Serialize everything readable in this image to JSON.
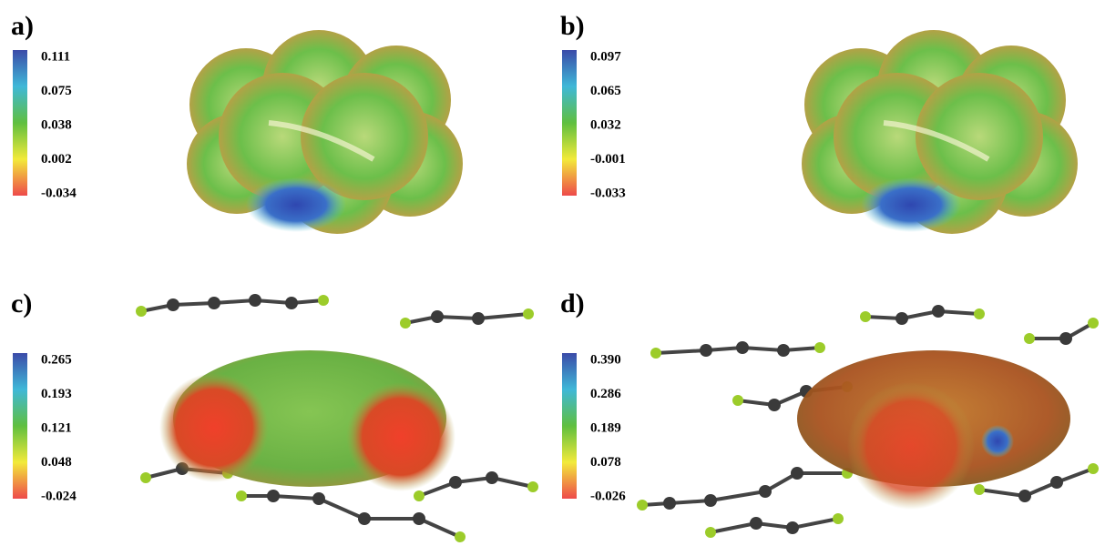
{
  "panels": [
    {
      "label": "a)",
      "ticks": [
        "0.111",
        "0.075",
        "0.038",
        "0.002",
        "-0.034"
      ]
    },
    {
      "label": "b)",
      "ticks": [
        "0.097",
        "0.065",
        "0.032",
        "-0.001",
        "-0.033"
      ]
    },
    {
      "label": "c)",
      "ticks": [
        "0.265",
        "0.193",
        "0.121",
        "0.048",
        "-0.024"
      ]
    },
    {
      "label": "d)",
      "ticks": [
        "0.390",
        "0.286",
        "0.189",
        "0.078",
        "-0.026"
      ]
    }
  ]
}
